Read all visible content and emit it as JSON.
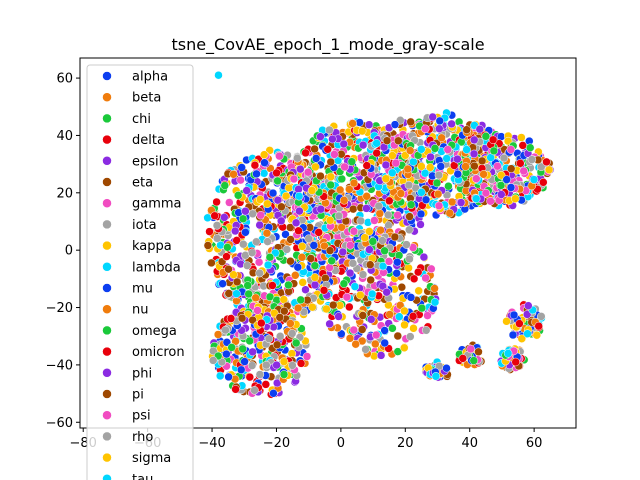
{
  "chart_data": {
    "type": "scatter",
    "title": "tsne_CovAE_epoch_1_mode_gray-scale",
    "xlabel": "",
    "ylabel": "",
    "xlim": [
      -81,
      73
    ],
    "ylim": [
      -62,
      67
    ],
    "xticks": [
      -80,
      -60,
      -40,
      -20,
      0,
      20,
      40,
      60
    ],
    "yticks": [
      -60,
      -40,
      -20,
      0,
      20,
      40,
      60
    ],
    "x_tick_labels": [
      "−80",
      "−60",
      "−40",
      "−20",
      "0",
      "20",
      "40",
      "60"
    ],
    "y_tick_labels": [
      "−60",
      "−40",
      "−20",
      "0",
      "20",
      "40",
      "60"
    ],
    "grid": false,
    "legend_position": "upper-left",
    "series": [
      {
        "name": "alpha",
        "color": "#0c3ef0"
      },
      {
        "name": "beta",
        "color": "#f07c0c"
      },
      {
        "name": "chi",
        "color": "#1ac93a"
      },
      {
        "name": "delta",
        "color": "#e8000b"
      },
      {
        "name": "epsilon",
        "color": "#8b2be2"
      },
      {
        "name": "eta",
        "color": "#9f4800"
      },
      {
        "name": "gamma",
        "color": "#f14cc1"
      },
      {
        "name": "iota",
        "color": "#a3a3a3"
      },
      {
        "name": "kappa",
        "color": "#ffc400"
      },
      {
        "name": "lambda",
        "color": "#00d7ff"
      },
      {
        "name": "mu",
        "color": "#0c3ef0"
      },
      {
        "name": "nu",
        "color": "#f07c0c"
      },
      {
        "name": "omega",
        "color": "#1ac93a"
      },
      {
        "name": "omicron",
        "color": "#e8000b"
      },
      {
        "name": "phi",
        "color": "#8b2be2"
      },
      {
        "name": "pi",
        "color": "#9f4800"
      },
      {
        "name": "psi",
        "color": "#f14cc1"
      },
      {
        "name": "rho",
        "color": "#a3a3a3"
      },
      {
        "name": "sigma",
        "color": "#ffc400"
      },
      {
        "name": "tau",
        "color": "#00d7ff"
      }
    ],
    "clusters": [
      {
        "cx": -20,
        "cy": 5,
        "rx": 22,
        "ry": 30,
        "n": 700
      },
      {
        "cx": 5,
        "cy": 20,
        "rx": 22,
        "ry": 25,
        "n": 600
      },
      {
        "cx": 30,
        "cy": 30,
        "rx": 22,
        "ry": 18,
        "n": 450
      },
      {
        "cx": 50,
        "cy": 28,
        "rx": 15,
        "ry": 13,
        "n": 250
      },
      {
        "cx": -25,
        "cy": -35,
        "rx": 15,
        "ry": 16,
        "n": 300
      },
      {
        "cx": 12,
        "cy": -15,
        "rx": 18,
        "ry": 22,
        "n": 300
      },
      {
        "cx": 30,
        "cy": -42,
        "rx": 4,
        "ry": 3,
        "n": 40
      },
      {
        "cx": 40,
        "cy": -37,
        "rx": 4,
        "ry": 4,
        "n": 40
      },
      {
        "cx": 57,
        "cy": -25,
        "rx": 6,
        "ry": 6,
        "n": 60
      },
      {
        "cx": 53,
        "cy": -38,
        "rx": 4,
        "ry": 4,
        "n": 40
      }
    ],
    "outliers": [
      {
        "x": -38,
        "y": 61,
        "series": "tau"
      }
    ]
  }
}
